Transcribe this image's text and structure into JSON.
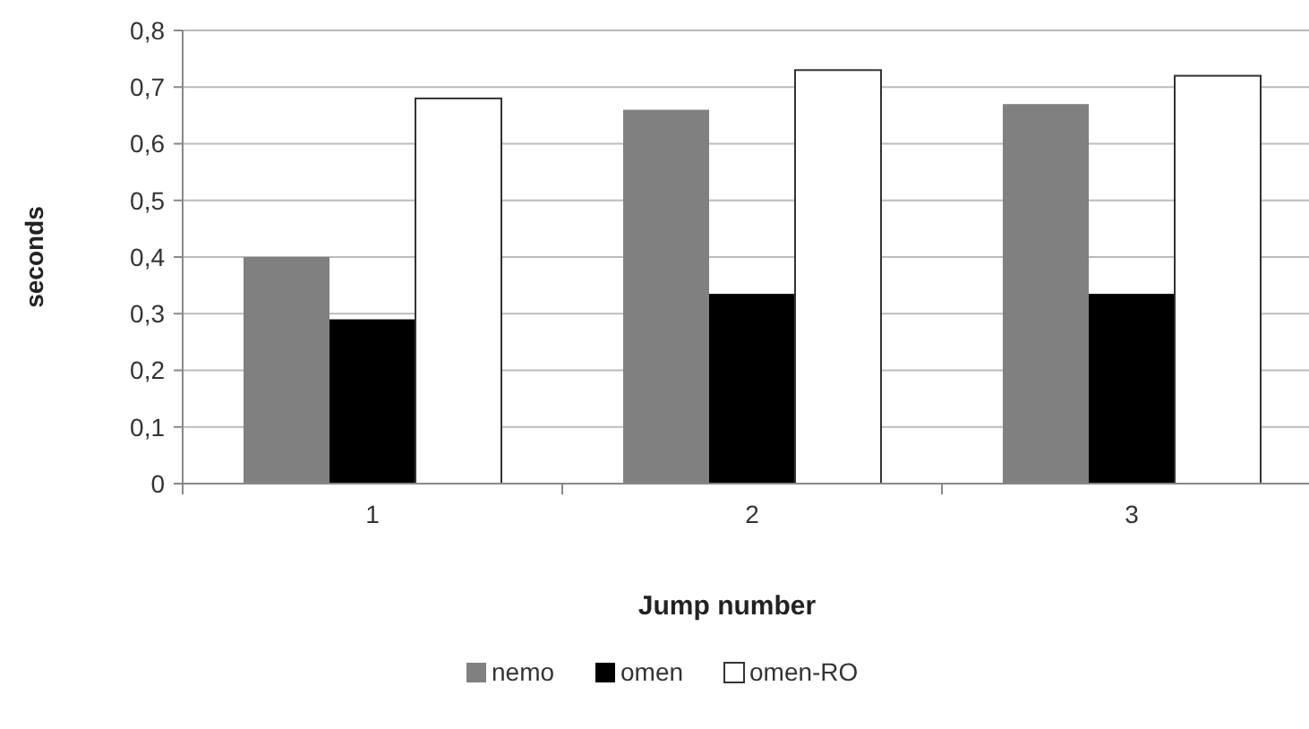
{
  "chart_data": {
    "type": "bar",
    "xlabel": "Jump number",
    "ylabel": "seconds",
    "categories": [
      "1",
      "2",
      "3"
    ],
    "series": [
      {
        "name": "nemo",
        "color": "#808080",
        "values": [
          0.4,
          0.66,
          0.67
        ]
      },
      {
        "name": "omen",
        "color": "#000000",
        "values": [
          0.29,
          0.335,
          0.335
        ]
      },
      {
        "name": "omen-RO",
        "color": "#ffffff",
        "values": [
          0.68,
          0.73,
          0.72
        ]
      }
    ],
    "ylim": [
      0,
      0.8
    ],
    "yticks": [
      {
        "value": 0,
        "label": "0"
      },
      {
        "value": 0.1,
        "label": "0,1"
      },
      {
        "value": 0.2,
        "label": "0,2"
      },
      {
        "value": 0.3,
        "label": "0,3"
      },
      {
        "value": 0.4,
        "label": "0,4"
      },
      {
        "value": 0.5,
        "label": "0,5"
      },
      {
        "value": 0.6,
        "label": "0,6"
      },
      {
        "value": 0.7,
        "label": "0,7"
      },
      {
        "value": 0.8,
        "label": "0,8"
      }
    ],
    "grid": "y",
    "legend": "bottom"
  }
}
